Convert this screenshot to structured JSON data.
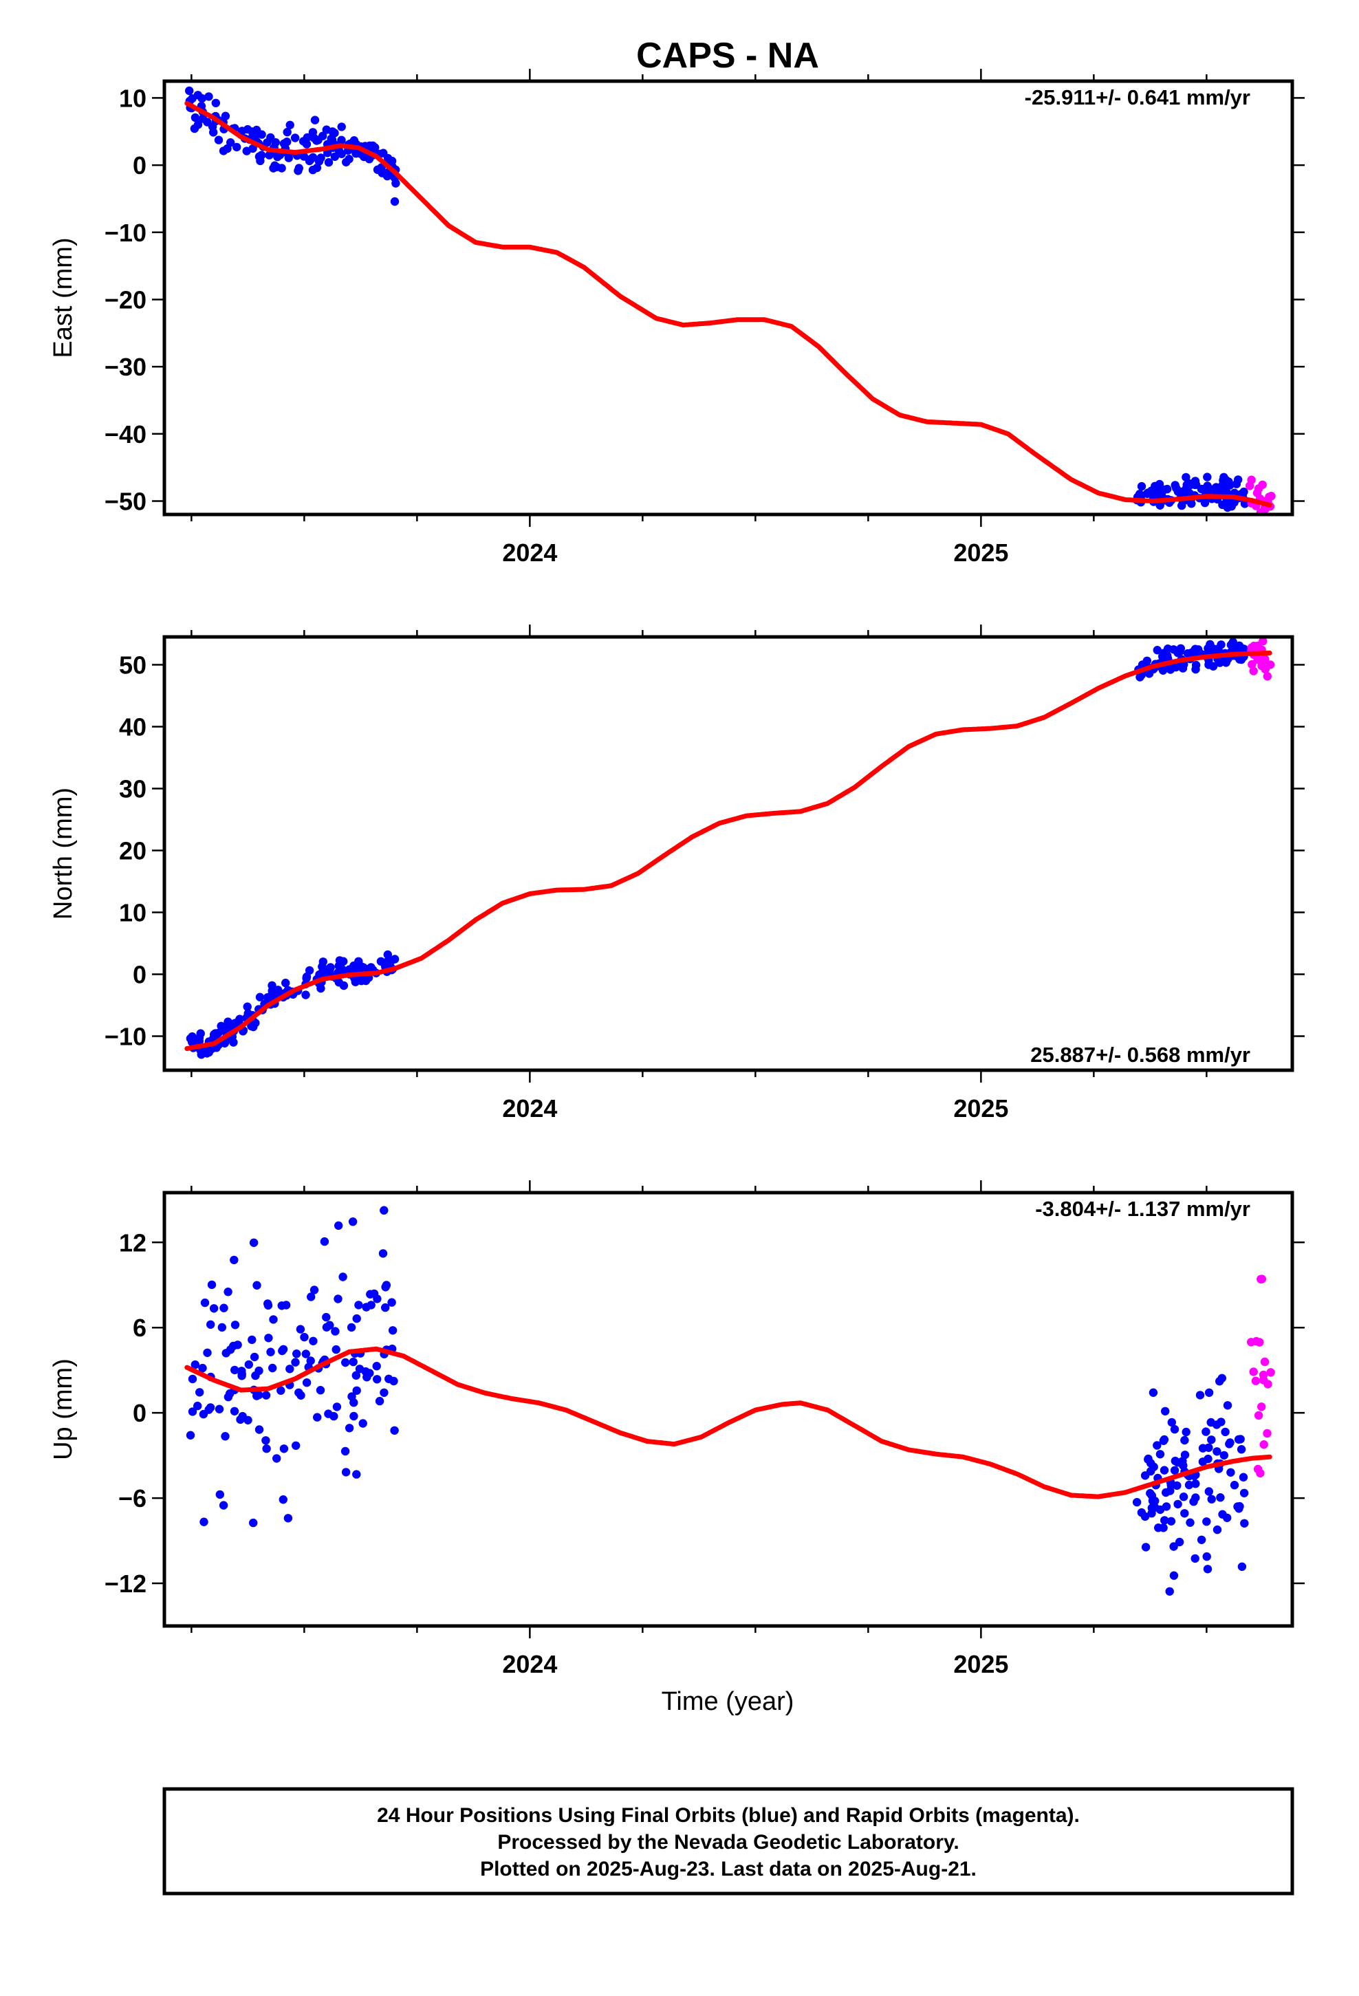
{
  "title": "CAPS - NA",
  "xlabel": "Time (year)",
  "footer": {
    "line1": "24 Hour Positions Using Final Orbits (blue) and Rapid Orbits (magenta).",
    "line2": "Processed by the Nevada Geodetic Laboratory.",
    "line3": "Plotted on 2025-Aug-23. Last data on 2025-Aug-21."
  },
  "colors": {
    "final": "#0000ff",
    "rapid": "#ff00ff",
    "fit": "#ff0000",
    "frame": "#000000"
  },
  "chart_data": [
    {
      "type": "scatter",
      "ylabel": "East (mm)",
      "rate_label": "-25.911+/- 0.641 mm/yr",
      "xlim": [
        2023.19,
        2025.69
      ],
      "ylim": [
        -52,
        12.5
      ],
      "yticks": [
        10,
        0,
        -10,
        -20,
        -30,
        -40,
        -50
      ],
      "ytick_labels": [
        "10",
        "0",
        "−10",
        "−20",
        "−30",
        "−40",
        "−50"
      ],
      "xticks": [
        2024,
        2025
      ],
      "xtick_labels": [
        "2024",
        "2025"
      ],
      "series": [
        {
          "style": "final",
          "segments": [
            {
              "x0": 2023.245,
              "x1": 2023.705,
              "fit_offset": 0.3,
              "noise": 1.6,
              "count": 150
            },
            {
              "x0": 2025.345,
              "x1": 2025.585,
              "fit_offset": 0.7,
              "noise": 1.2,
              "count": 110
            }
          ]
        },
        {
          "style": "rapid",
          "segments": [
            {
              "x0": 2025.595,
              "x1": 2025.645,
              "fit_offset": 0.5,
              "noise": 1.6,
              "count": 18
            }
          ]
        }
      ],
      "fit": [
        [
          2023.24,
          9.2
        ],
        [
          2023.3,
          7.0
        ],
        [
          2023.36,
          4.2
        ],
        [
          2023.42,
          2.3
        ],
        [
          2023.48,
          1.9
        ],
        [
          2023.54,
          2.4
        ],
        [
          2023.58,
          2.9
        ],
        [
          2023.62,
          2.6
        ],
        [
          2023.66,
          1.3
        ],
        [
          2023.7,
          -1.0
        ],
        [
          2023.76,
          -5.0
        ],
        [
          2023.82,
          -9.0
        ],
        [
          2023.88,
          -11.5
        ],
        [
          2023.94,
          -12.2
        ],
        [
          2024.0,
          -12.2
        ],
        [
          2024.06,
          -13.0
        ],
        [
          2024.12,
          -15.2
        ],
        [
          2024.2,
          -19.5
        ],
        [
          2024.28,
          -22.8
        ],
        [
          2024.34,
          -23.8
        ],
        [
          2024.4,
          -23.5
        ],
        [
          2024.46,
          -23.0
        ],
        [
          2024.52,
          -23.0
        ],
        [
          2024.58,
          -24.0
        ],
        [
          2024.64,
          -27.0
        ],
        [
          2024.7,
          -31.0
        ],
        [
          2024.76,
          -34.8
        ],
        [
          2024.82,
          -37.2
        ],
        [
          2024.88,
          -38.2
        ],
        [
          2024.94,
          -38.4
        ],
        [
          2025.0,
          -38.6
        ],
        [
          2025.06,
          -40.0
        ],
        [
          2025.12,
          -43.0
        ],
        [
          2025.2,
          -46.8
        ],
        [
          2025.26,
          -48.8
        ],
        [
          2025.32,
          -49.8
        ],
        [
          2025.38,
          -50.0
        ],
        [
          2025.44,
          -49.7
        ],
        [
          2025.5,
          -49.3
        ],
        [
          2025.56,
          -49.4
        ],
        [
          2025.6,
          -49.9
        ],
        [
          2025.64,
          -50.6
        ]
      ]
    },
    {
      "type": "scatter",
      "ylabel": "North (mm)",
      "rate_label": "25.887+/- 0.568 mm/yr",
      "xlim": [
        2023.19,
        2025.69
      ],
      "ylim": [
        -15.5,
        54.5
      ],
      "yticks": [
        50,
        40,
        30,
        20,
        10,
        0,
        -10
      ],
      "ytick_labels": [
        "50",
        "40",
        "30",
        "20",
        "10",
        "0",
        "−10"
      ],
      "xticks": [
        2024,
        2025
      ],
      "xtick_labels": [
        "2024",
        "2025"
      ],
      "series": [
        {
          "style": "final",
          "segments": [
            {
              "x0": 2023.245,
              "x1": 2023.705,
              "fit_offset": 0.4,
              "noise": 1.2,
              "count": 150
            },
            {
              "x0": 2025.345,
              "x1": 2025.585,
              "fit_offset": 0.2,
              "noise": 1.0,
              "count": 110
            }
          ]
        },
        {
          "style": "rapid",
          "segments": [
            {
              "x0": 2025.595,
              "x1": 2025.645,
              "fit_offset": -1.0,
              "noise": 1.6,
              "count": 18
            }
          ]
        }
      ],
      "fit": [
        [
          2023.24,
          -12.0
        ],
        [
          2023.3,
          -11.2
        ],
        [
          2023.36,
          -8.5
        ],
        [
          2023.42,
          -5.0
        ],
        [
          2023.48,
          -2.5
        ],
        [
          2023.54,
          -0.8
        ],
        [
          2023.6,
          -0.1
        ],
        [
          2023.66,
          0.2
        ],
        [
          2023.7,
          0.9
        ],
        [
          2023.76,
          2.6
        ],
        [
          2023.82,
          5.5
        ],
        [
          2023.88,
          8.8
        ],
        [
          2023.94,
          11.5
        ],
        [
          2024.0,
          13.0
        ],
        [
          2024.06,
          13.6
        ],
        [
          2024.12,
          13.7
        ],
        [
          2024.18,
          14.3
        ],
        [
          2024.24,
          16.3
        ],
        [
          2024.3,
          19.3
        ],
        [
          2024.36,
          22.2
        ],
        [
          2024.42,
          24.4
        ],
        [
          2024.48,
          25.6
        ],
        [
          2024.54,
          26.0
        ],
        [
          2024.6,
          26.3
        ],
        [
          2024.66,
          27.6
        ],
        [
          2024.72,
          30.2
        ],
        [
          2024.78,
          33.6
        ],
        [
          2024.84,
          36.8
        ],
        [
          2024.9,
          38.8
        ],
        [
          2024.96,
          39.5
        ],
        [
          2025.02,
          39.7
        ],
        [
          2025.08,
          40.1
        ],
        [
          2025.14,
          41.5
        ],
        [
          2025.2,
          43.8
        ],
        [
          2025.26,
          46.2
        ],
        [
          2025.32,
          48.2
        ],
        [
          2025.38,
          49.7
        ],
        [
          2025.44,
          50.7
        ],
        [
          2025.5,
          51.3
        ],
        [
          2025.56,
          51.7
        ],
        [
          2025.6,
          51.8
        ],
        [
          2025.64,
          51.9
        ]
      ]
    },
    {
      "type": "scatter",
      "ylabel": "Up (mm)",
      "rate_label": "-3.804+/- 1.137 mm/yr",
      "xlim": [
        2023.19,
        2025.69
      ],
      "ylim": [
        -15,
        15.5
      ],
      "yticks": [
        12,
        6,
        0,
        -6,
        -12
      ],
      "ytick_labels": [
        "12",
        "6",
        "0",
        "−6",
        "−12"
      ],
      "xticks": [
        2024,
        2025
      ],
      "xtick_labels": [
        "2024",
        "2025"
      ],
      "series": [
        {
          "style": "final",
          "segments": [
            {
              "x0": 2023.245,
              "x1": 2023.705,
              "fit_offset": 0.0,
              "noise": 4.2,
              "count": 150
            },
            {
              "x0": 2025.345,
              "x1": 2025.585,
              "fit_offset": -0.5,
              "noise": 3.2,
              "count": 110
            }
          ]
        },
        {
          "style": "rapid",
          "segments": [
            {
              "x0": 2025.595,
              "x1": 2025.645,
              "fit_offset": 3.0,
              "noise": 5.0,
              "count": 18
            }
          ]
        }
      ],
      "fit": [
        [
          2023.24,
          3.2
        ],
        [
          2023.3,
          2.3
        ],
        [
          2023.36,
          1.6
        ],
        [
          2023.42,
          1.7
        ],
        [
          2023.48,
          2.4
        ],
        [
          2023.54,
          3.4
        ],
        [
          2023.6,
          4.3
        ],
        [
          2023.66,
          4.5
        ],
        [
          2023.72,
          4.0
        ],
        [
          2023.78,
          3.0
        ],
        [
          2023.84,
          2.0
        ],
        [
          2023.9,
          1.4
        ],
        [
          2023.96,
          1.0
        ],
        [
          2024.02,
          0.7
        ],
        [
          2024.08,
          0.2
        ],
        [
          2024.14,
          -0.6
        ],
        [
          2024.2,
          -1.4
        ],
        [
          2024.26,
          -2.0
        ],
        [
          2024.32,
          -2.2
        ],
        [
          2024.38,
          -1.7
        ],
        [
          2024.44,
          -0.7
        ],
        [
          2024.5,
          0.2
        ],
        [
          2024.56,
          0.6
        ],
        [
          2024.6,
          0.7
        ],
        [
          2024.66,
          0.2
        ],
        [
          2024.72,
          -0.9
        ],
        [
          2024.78,
          -2.0
        ],
        [
          2024.84,
          -2.6
        ],
        [
          2024.9,
          -2.9
        ],
        [
          2024.96,
          -3.1
        ],
        [
          2025.02,
          -3.6
        ],
        [
          2025.08,
          -4.3
        ],
        [
          2025.14,
          -5.2
        ],
        [
          2025.2,
          -5.8
        ],
        [
          2025.26,
          -5.9
        ],
        [
          2025.32,
          -5.6
        ],
        [
          2025.38,
          -5.0
        ],
        [
          2025.44,
          -4.4
        ],
        [
          2025.5,
          -3.8
        ],
        [
          2025.56,
          -3.4
        ],
        [
          2025.6,
          -3.2
        ],
        [
          2025.64,
          -3.1
        ]
      ]
    }
  ]
}
